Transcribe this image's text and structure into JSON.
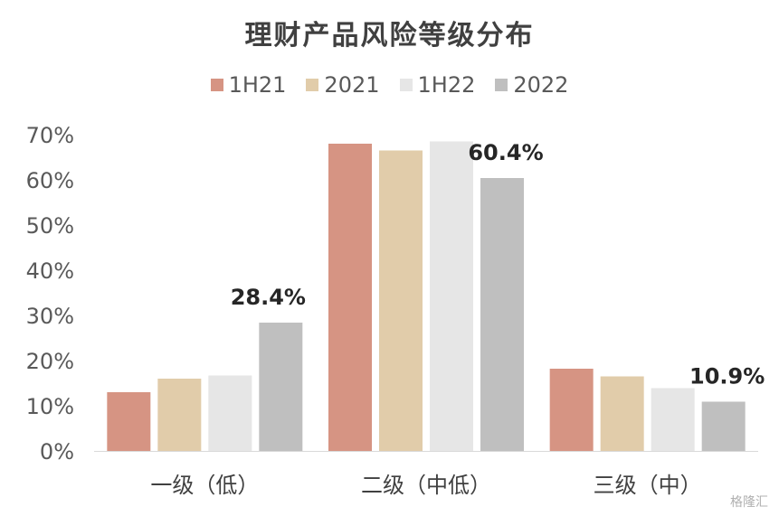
{
  "chart_data": {
    "type": "bar",
    "title": "理财产品风险等级分布",
    "categories": [
      "一级（低）",
      "二级（中低）",
      "三级（中）"
    ],
    "series": [
      {
        "name": "1H21",
        "color": "#d69483",
        "values": [
          13.0,
          68.0,
          18.2
        ]
      },
      {
        "name": "2021",
        "color": "#e1ccaa",
        "values": [
          16.0,
          66.5,
          16.5
        ]
      },
      {
        "name": "1H22",
        "color": "#e6e6e6",
        "values": [
          16.7,
          68.5,
          13.9
        ]
      },
      {
        "name": "2022",
        "color": "#bfbfbf",
        "values": [
          28.4,
          60.4,
          10.9
        ]
      }
    ],
    "data_labels": [
      "28.4%",
      "60.4%",
      "10.9%"
    ],
    "yticks": [
      "0%",
      "10%",
      "20%",
      "30%",
      "40%",
      "50%",
      "60%",
      "70%"
    ],
    "ylim": [
      0,
      70
    ],
    "grid": false,
    "legend_position": "top"
  },
  "watermark": "格隆汇"
}
